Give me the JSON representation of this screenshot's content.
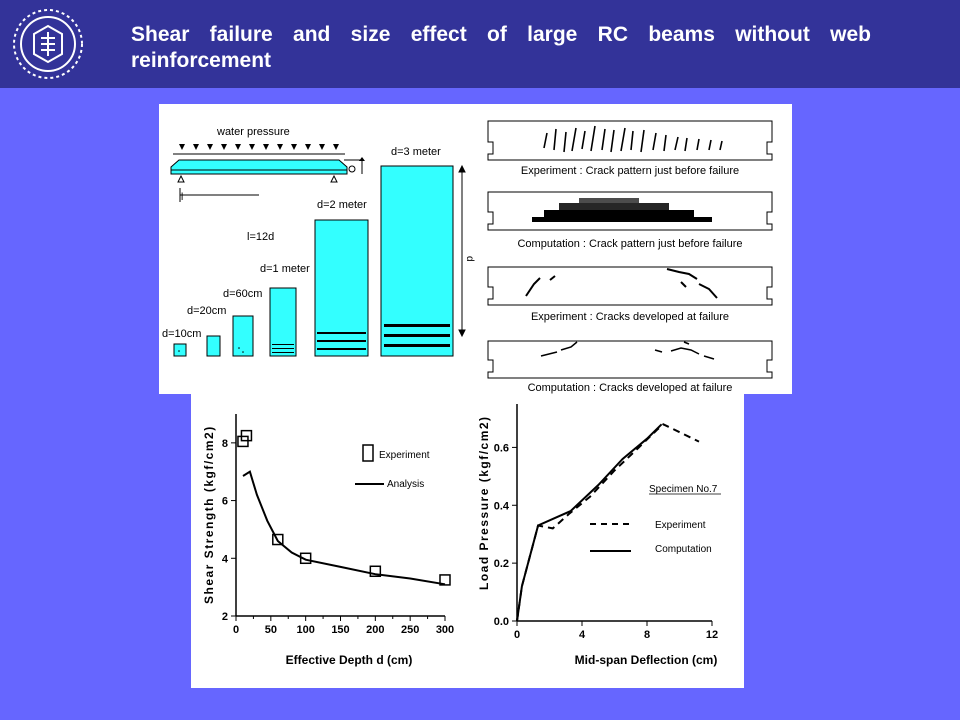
{
  "header": {
    "title": "Shear failure and size effect of large RC beams without web reinforcement",
    "logo_icon": "university-crest-icon"
  },
  "colors": {
    "background": "#6666ff",
    "header": "#333399",
    "beam": "#33ffff",
    "title_text": "#ffffff"
  },
  "beam_diagram": {
    "load_label": "water pressure",
    "span_ratio_label": "l=12d",
    "depth_symbol": "d",
    "span_symbol": "l",
    "depth_labels": [
      "d=10cm",
      "d=20cm",
      "d=60cm",
      "d=1 meter",
      "d=2 meter",
      "d=3 meter"
    ]
  },
  "crack_patterns": [
    {
      "caption": "Experiment : Crack pattern just before failure"
    },
    {
      "caption": "Computation : Crack pattern just before failure"
    },
    {
      "caption": "Experiment : Cracks developed at failure"
    },
    {
      "caption": "Computation : Cracks developed at failure"
    }
  ],
  "chart_data": [
    {
      "type": "scatter",
      "title": "",
      "xlabel": "Effective Depth d (cm)",
      "ylabel": "Shear Strength (kgf/cm2)",
      "xlim": [
        0,
        300
      ],
      "ylim": [
        2,
        9
      ],
      "xticks": [
        "0",
        "50",
        "100",
        "150",
        "200",
        "250",
        "300"
      ],
      "yticks": [
        "2",
        "4",
        "6",
        "8"
      ],
      "series": [
        {
          "name": "Experiment",
          "kind": "markers",
          "x": [
            10,
            15,
            60,
            100,
            200,
            300
          ],
          "y": [
            8.05,
            8.25,
            4.65,
            4.0,
            3.55,
            3.25
          ]
        },
        {
          "name": "Analysis",
          "kind": "line",
          "x": [
            10,
            20,
            30,
            45,
            60,
            80,
            100,
            150,
            200,
            250,
            300
          ],
          "y": [
            6.85,
            7.0,
            6.2,
            5.3,
            4.6,
            4.2,
            3.95,
            3.7,
            3.45,
            3.3,
            3.1
          ]
        }
      ],
      "legend_position": "top-right"
    },
    {
      "type": "line",
      "title": "",
      "annotation": "Specimen No.7",
      "xlabel": "Mid-span Deflection (cm)",
      "ylabel": "Load Pressure (kgf/cm2)",
      "xlim": [
        0,
        12
      ],
      "ylim": [
        0,
        0.75
      ],
      "xticks": [
        "0",
        "4",
        "8",
        "12"
      ],
      "yticks": [
        "0.0",
        "0.2",
        "0.4",
        "0.6"
      ],
      "series": [
        {
          "name": "Experiment",
          "style": "dashed",
          "x": [
            0,
            0.3,
            1.3,
            2.2,
            3.2,
            4.5,
            6.0,
            7.5,
            8.6,
            9.0,
            11.2
          ],
          "y": [
            0,
            0.12,
            0.33,
            0.32,
            0.37,
            0.43,
            0.52,
            0.6,
            0.66,
            0.68,
            0.62
          ]
        },
        {
          "name": "Computation",
          "style": "solid",
          "x": [
            0,
            0.3,
            1.3,
            2.5,
            3.3,
            5.0,
            6.5,
            8.0,
            8.9
          ],
          "y": [
            0,
            0.12,
            0.33,
            0.36,
            0.38,
            0.47,
            0.56,
            0.63,
            0.68
          ]
        }
      ],
      "legend_position": "center-right"
    }
  ]
}
